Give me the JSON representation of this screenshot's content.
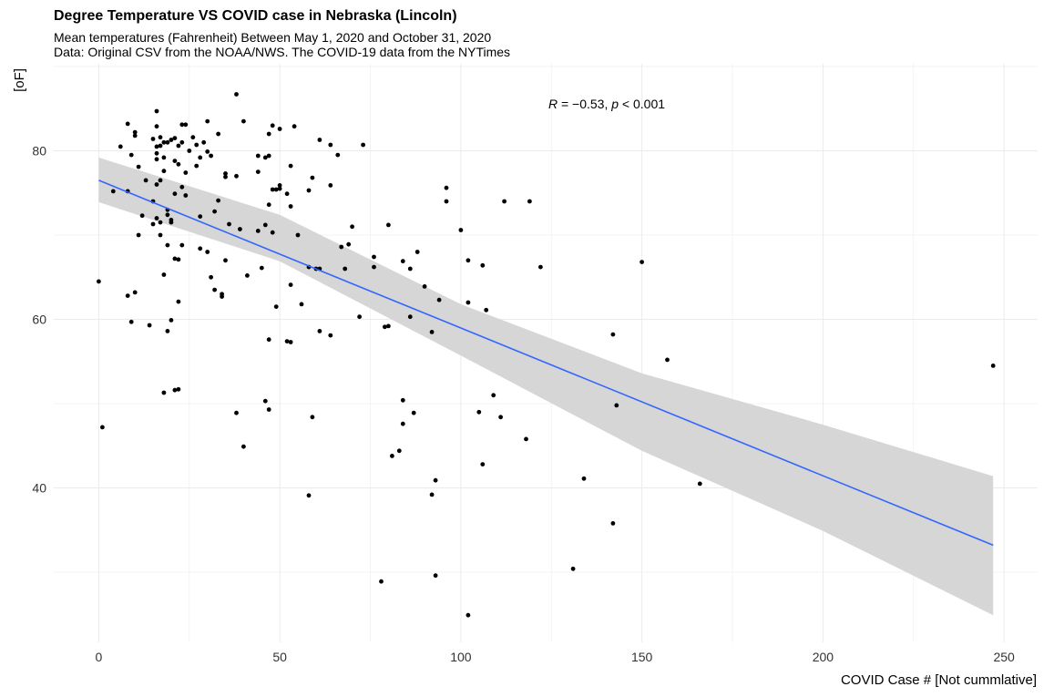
{
  "chart_data": {
    "type": "scatter",
    "title": "Degree Temperature VS COVID case in Nebraska (Lincoln)",
    "subtitle": "Mean temperatures (Fahrenheit) Between May 1, 2020  and October 31, 2020\nData: Original CSV from the NOAA/NWS. The COVID-19 data from the NYTimes",
    "xlabel": "COVID Case # [Not cummlative]",
    "ylabel": "[oF]",
    "xlim": [
      -6,
      260
    ],
    "ylim": [
      20,
      90
    ],
    "xticks": [
      0,
      50,
      100,
      150,
      200,
      250
    ],
    "yticks": [
      40,
      60,
      80
    ],
    "grid": true,
    "legend": "none",
    "annotation": {
      "R_label": "R",
      "R_value": " = −0.53, ",
      "p_label": "p",
      "p_value": " < 0.001",
      "x": 140,
      "y": 85.5
    },
    "colors": {
      "points": "#000000",
      "line": "#3366ff",
      "ribbon": "#d4d4d4",
      "grid": "#ebebeb"
    },
    "fit": {
      "line": [
        [
          0,
          76.5
        ],
        [
          247,
          33.2
        ]
      ],
      "ci_upper": [
        [
          0,
          79.2
        ],
        [
          50,
          72.4
        ],
        [
          100,
          61.8
        ],
        [
          150,
          53.6
        ],
        [
          200,
          47.5
        ],
        [
          247,
          41.4
        ]
      ],
      "ci_lower": [
        [
          0,
          73.9
        ],
        [
          50,
          66.9
        ],
        [
          100,
          55.7
        ],
        [
          150,
          44.4
        ],
        [
          200,
          34.9
        ],
        [
          247,
          24.9
        ]
      ]
    },
    "points": [
      [
        0,
        64.5
      ],
      [
        1,
        47.2
      ],
      [
        4,
        75.2
      ],
      [
        6,
        80.5
      ],
      [
        8,
        75.2
      ],
      [
        8,
        83.2
      ],
      [
        8,
        62.8
      ],
      [
        9,
        79.5
      ],
      [
        9,
        59.7
      ],
      [
        10,
        82.2
      ],
      [
        10,
        81.8
      ],
      [
        10,
        63.2
      ],
      [
        11,
        78.1
      ],
      [
        11,
        70
      ],
      [
        12,
        72.3
      ],
      [
        13,
        76.5
      ],
      [
        14,
        59.3
      ],
      [
        15,
        81.4
      ],
      [
        15,
        74
      ],
      [
        15,
        71.3
      ],
      [
        16,
        84.7
      ],
      [
        16,
        82.9
      ],
      [
        16,
        80.5
      ],
      [
        16,
        79.7
      ],
      [
        16,
        79
      ],
      [
        16,
        76
      ],
      [
        16,
        72
      ],
      [
        17,
        80.6
      ],
      [
        17,
        81.6
      ],
      [
        17,
        76.5
      ],
      [
        17,
        71.5
      ],
      [
        17,
        70
      ],
      [
        18,
        81
      ],
      [
        18,
        79.2
      ],
      [
        18,
        77.6
      ],
      [
        18,
        65.3
      ],
      [
        18,
        51.3
      ],
      [
        19,
        81
      ],
      [
        19,
        73
      ],
      [
        19,
        72.4
      ],
      [
        19,
        68.8
      ],
      [
        19,
        58.6
      ],
      [
        20,
        81.3
      ],
      [
        20,
        71.8
      ],
      [
        20,
        71.5
      ],
      [
        20,
        59.9
      ],
      [
        21,
        81.5
      ],
      [
        21,
        78.8
      ],
      [
        21,
        74.9
      ],
      [
        21,
        67.2
      ],
      [
        21,
        51.6
      ],
      [
        22,
        80.6
      ],
      [
        22,
        78.4
      ],
      [
        22,
        62.1
      ],
      [
        22,
        51.7
      ],
      [
        22,
        67.1
      ],
      [
        23,
        83.1
      ],
      [
        23,
        81
      ],
      [
        23,
        75.7
      ],
      [
        23,
        68.8
      ],
      [
        24,
        83.1
      ],
      [
        24,
        77.4
      ],
      [
        24,
        74.7
      ],
      [
        25,
        80
      ],
      [
        26,
        81.6
      ],
      [
        27,
        80.7
      ],
      [
        27,
        78.2
      ],
      [
        28,
        79.2
      ],
      [
        28,
        72.2
      ],
      [
        28,
        68.4
      ],
      [
        29,
        81
      ],
      [
        30,
        83.5
      ],
      [
        30,
        79.9
      ],
      [
        30,
        68
      ],
      [
        31,
        79.4
      ],
      [
        31,
        65
      ],
      [
        32,
        72.8
      ],
      [
        32,
        63.5
      ],
      [
        33,
        74.1
      ],
      [
        33,
        82
      ],
      [
        34,
        63
      ],
      [
        34,
        62.7
      ],
      [
        35,
        77.3
      ],
      [
        35,
        76.9
      ],
      [
        35,
        67
      ],
      [
        36,
        71.3
      ],
      [
        38,
        86.7
      ],
      [
        38,
        77
      ],
      [
        38,
        48.9
      ],
      [
        39,
        70.7
      ],
      [
        40,
        83.5
      ],
      [
        40,
        44.9
      ],
      [
        41,
        65.2
      ],
      [
        44,
        79.4
      ],
      [
        44,
        77.5
      ],
      [
        44,
        70.5
      ],
      [
        45,
        66.1
      ],
      [
        46,
        79.2
      ],
      [
        46,
        71.2
      ],
      [
        46,
        50.3
      ],
      [
        47,
        82
      ],
      [
        47,
        79.4
      ],
      [
        47,
        73.6
      ],
      [
        47,
        57.6
      ],
      [
        47,
        49.3
      ],
      [
        48,
        75.4
      ],
      [
        48,
        70.3
      ],
      [
        48,
        83
      ],
      [
        49,
        75.4
      ],
      [
        49,
        61.5
      ],
      [
        50,
        75.9
      ],
      [
        50,
        75.5
      ],
      [
        50,
        82.6
      ],
      [
        52,
        74.9
      ],
      [
        52,
        57.4
      ],
      [
        53,
        78.2
      ],
      [
        53,
        73.4
      ],
      [
        53,
        64.1
      ],
      [
        53,
        57.3
      ],
      [
        54,
        82.9
      ],
      [
        55,
        70
      ],
      [
        56,
        61.8
      ],
      [
        58,
        75.3
      ],
      [
        58,
        66.2
      ],
      [
        58,
        39.1
      ],
      [
        59,
        76.8
      ],
      [
        59,
        48.4
      ],
      [
        60,
        66
      ],
      [
        61,
        81.3
      ],
      [
        61,
        58.6
      ],
      [
        61,
        66
      ],
      [
        64,
        80.7
      ],
      [
        64,
        58.1
      ],
      [
        64,
        75.9
      ],
      [
        66,
        79.5
      ],
      [
        67,
        68.6
      ],
      [
        68,
        66
      ],
      [
        69,
        68.9
      ],
      [
        70,
        71
      ],
      [
        72,
        60.3
      ],
      [
        73,
        80.7
      ],
      [
        76,
        67.4
      ],
      [
        76,
        66.2
      ],
      [
        78,
        28.9
      ],
      [
        79,
        59.1
      ],
      [
        80,
        59.2
      ],
      [
        80,
        71.2
      ],
      [
        81,
        43.8
      ],
      [
        83,
        44.4
      ],
      [
        84,
        66.9
      ],
      [
        84,
        50.4
      ],
      [
        84,
        47.6
      ],
      [
        86,
        66
      ],
      [
        86,
        60.3
      ],
      [
        87,
        48.9
      ],
      [
        88,
        68
      ],
      [
        90,
        63.9
      ],
      [
        92,
        58.5
      ],
      [
        92,
        39.2
      ],
      [
        93,
        29.6
      ],
      [
        93,
        40.9
      ],
      [
        94,
        62.3
      ],
      [
        96,
        75.6
      ],
      [
        96,
        74
      ],
      [
        100,
        70.6
      ],
      [
        102,
        62
      ],
      [
        102,
        67
      ],
      [
        102,
        24.9
      ],
      [
        105,
        49
      ],
      [
        106,
        66.4
      ],
      [
        106,
        42.8
      ],
      [
        107,
        61.1
      ],
      [
        109,
        51
      ],
      [
        111,
        48.4
      ],
      [
        112,
        74
      ],
      [
        118,
        45.8
      ],
      [
        119,
        74
      ],
      [
        122,
        66.2
      ],
      [
        131,
        30.4
      ],
      [
        134,
        41.1
      ],
      [
        142,
        58.2
      ],
      [
        142,
        35.8
      ],
      [
        143,
        49.8
      ],
      [
        150,
        66.8
      ],
      [
        157,
        55.2
      ],
      [
        166,
        40.5
      ],
      [
        247,
        54.5
      ]
    ]
  }
}
